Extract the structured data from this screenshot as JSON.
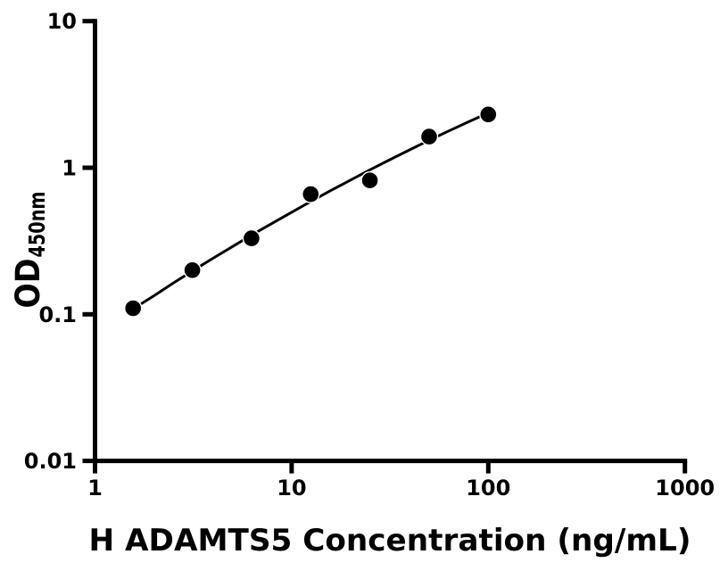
{
  "figure": {
    "background": "#ffffff"
  },
  "chart_data": {
    "type": "scatter",
    "title": "",
    "xlabel": "H ADAMTS5 Concentration (ng/mL)",
    "ylabel_main": "OD",
    "ylabel_sub": "450nm",
    "x_scale": "log10",
    "y_scale": "log10",
    "xlim": [
      1,
      1000
    ],
    "ylim": [
      0.01,
      10
    ],
    "grid": false,
    "legend_position": "none",
    "x_tick_values": [
      1,
      10,
      100,
      1000
    ],
    "x_tick_labels": [
      "1",
      "10",
      "100",
      "1000"
    ],
    "y_tick_values": [
      0.01,
      0.1,
      1,
      10
    ],
    "y_tick_labels": [
      "0.01",
      "0.1",
      "1",
      "10"
    ],
    "axis_color": "#000000",
    "marker_color": "#000000",
    "line_color": "#000000",
    "points": [
      {
        "x": 1.563,
        "y": 0.11
      },
      {
        "x": 3.125,
        "y": 0.2
      },
      {
        "x": 6.25,
        "y": 0.33
      },
      {
        "x": 12.5,
        "y": 0.66
      },
      {
        "x": 25,
        "y": 0.82
      },
      {
        "x": 50,
        "y": 1.63
      },
      {
        "x": 100,
        "y": 2.31
      }
    ],
    "fit_curve": [
      [
        1.58,
        0.11
      ],
      [
        2.0,
        0.134
      ],
      [
        2.51,
        0.164
      ],
      [
        3.16,
        0.199
      ],
      [
        3.98,
        0.241
      ],
      [
        5.01,
        0.29
      ],
      [
        6.31,
        0.349
      ],
      [
        7.94,
        0.417
      ],
      [
        10.0,
        0.497
      ],
      [
        12.6,
        0.591
      ],
      [
        15.8,
        0.699
      ],
      [
        20.0,
        0.825
      ],
      [
        25.1,
        0.969
      ],
      [
        31.6,
        1.135
      ],
      [
        39.8,
        1.324
      ],
      [
        50.1,
        1.539
      ],
      [
        63.1,
        1.783
      ],
      [
        79.4,
        2.057
      ],
      [
        100.0,
        2.365
      ]
    ]
  }
}
